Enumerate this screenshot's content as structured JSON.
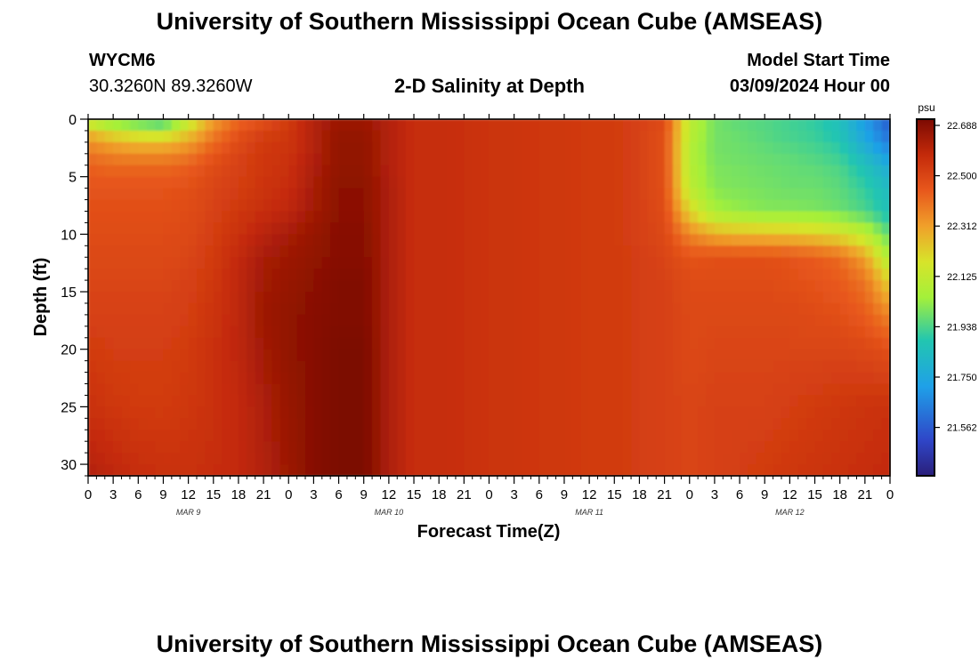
{
  "header": {
    "title": "University of Southern Mississippi Ocean Cube (AMSEAS)",
    "station": "WYCM6",
    "coords": "30.3260N  89.3260W",
    "chart_title": "2-D Salinity at Depth",
    "model_label": "Model Start Time",
    "model_time": "03/09/2024 Hour 00"
  },
  "footer": {
    "title": "University of Southern Mississippi Ocean Cube (AMSEAS)"
  },
  "colors": {
    "low": "#2a1f7a",
    "high": "#7c0a02"
  },
  "chart_data": {
    "type": "heatmap",
    "title": "2-D Salinity at Depth",
    "xlabel": "Forecast Time(Z)",
    "ylabel": "Depth (ft)",
    "x_ticks": [
      "0",
      "3",
      "6",
      "9",
      "12",
      "15",
      "18",
      "21",
      "0",
      "3",
      "6",
      "9",
      "12",
      "15",
      "18",
      "21",
      "0",
      "3",
      "6",
      "9",
      "12",
      "15",
      "18",
      "21",
      "0",
      "3",
      "6",
      "9",
      "12",
      "15",
      "18",
      "21",
      "0"
    ],
    "x_range_hours": [
      0,
      96
    ],
    "day_labels": [
      {
        "label": "MAR 9",
        "hour": 12
      },
      {
        "label": "MAR 10",
        "hour": 36
      },
      {
        "label": "MAR 11",
        "hour": 60
      },
      {
        "label": "MAR 12",
        "hour": 84
      }
    ],
    "y_ticks": [
      0,
      5,
      10,
      15,
      20,
      25,
      30
    ],
    "y_range_ft": [
      0,
      31
    ],
    "colorbar": {
      "unit": "psu",
      "ticks": [
        "22.688",
        "22.500",
        "22.312",
        "22.125",
        "21.938",
        "21.750",
        "21.562"
      ],
      "range": [
        21.375,
        22.7
      ]
    },
    "grid_hours": [
      0,
      3,
      6,
      9,
      12,
      15,
      18,
      21,
      24,
      27,
      30,
      33,
      36,
      39,
      42,
      45,
      48,
      51,
      54,
      57,
      60,
      63,
      66,
      69,
      72,
      75,
      78,
      81,
      84,
      87,
      90,
      93,
      96
    ],
    "grid_depths": [
      0,
      1,
      2,
      3,
      4,
      6,
      8,
      10,
      12,
      14,
      17,
      20,
      25,
      31
    ],
    "values": [
      [
        22.05,
        21.95,
        21.9,
        21.85,
        22.1,
        22.3,
        22.4,
        22.45,
        22.52,
        22.6,
        22.64,
        22.64,
        22.6,
        22.56,
        22.56,
        22.55,
        22.54,
        22.54,
        22.53,
        22.53,
        22.52,
        22.52,
        22.5,
        22.48,
        22.1,
        21.98,
        21.95,
        21.94,
        21.92,
        21.9,
        21.85,
        21.7,
        21.55
      ],
      [
        22.25,
        22.15,
        22.1,
        22.08,
        22.2,
        22.35,
        22.45,
        22.5,
        22.53,
        22.6,
        22.65,
        22.65,
        22.6,
        22.56,
        22.56,
        22.55,
        22.54,
        22.54,
        22.53,
        22.53,
        22.52,
        22.52,
        22.5,
        22.46,
        22.1,
        21.98,
        21.96,
        21.94,
        21.92,
        21.9,
        21.85,
        21.72,
        21.58
      ],
      [
        22.33,
        22.28,
        22.25,
        22.25,
        22.3,
        22.4,
        22.47,
        22.52,
        22.54,
        22.6,
        22.66,
        22.66,
        22.6,
        22.56,
        22.56,
        22.55,
        22.54,
        22.54,
        22.53,
        22.53,
        22.52,
        22.52,
        22.5,
        22.46,
        22.08,
        21.98,
        21.97,
        21.95,
        21.93,
        21.92,
        21.88,
        21.75,
        21.62
      ],
      [
        22.38,
        22.35,
        22.33,
        22.33,
        22.36,
        22.44,
        22.49,
        22.53,
        22.54,
        22.6,
        22.66,
        22.66,
        22.6,
        22.56,
        22.56,
        22.55,
        22.54,
        22.54,
        22.53,
        22.53,
        22.52,
        22.52,
        22.5,
        22.46,
        22.08,
        21.98,
        21.97,
        21.96,
        21.95,
        21.93,
        21.9,
        21.8,
        21.68
      ],
      [
        22.42,
        22.4,
        22.4,
        22.4,
        22.42,
        22.47,
        22.5,
        22.53,
        22.55,
        22.61,
        22.66,
        22.66,
        22.6,
        22.56,
        22.56,
        22.55,
        22.54,
        22.54,
        22.53,
        22.53,
        22.52,
        22.52,
        22.5,
        22.46,
        22.08,
        21.99,
        21.98,
        21.97,
        21.96,
        21.95,
        21.93,
        21.85,
        21.75
      ],
      [
        22.45,
        22.45,
        22.45,
        22.45,
        22.46,
        22.49,
        22.51,
        22.54,
        22.56,
        22.62,
        22.67,
        22.67,
        22.61,
        22.56,
        22.56,
        22.55,
        22.54,
        22.54,
        22.53,
        22.53,
        22.52,
        22.52,
        22.5,
        22.46,
        22.1,
        22.0,
        21.99,
        21.98,
        21.97,
        21.97,
        21.95,
        21.9,
        21.82
      ],
      [
        22.46,
        22.46,
        22.46,
        22.46,
        22.47,
        22.5,
        22.53,
        22.56,
        22.58,
        22.63,
        22.67,
        22.67,
        22.61,
        22.56,
        22.56,
        22.55,
        22.54,
        22.54,
        22.53,
        22.53,
        22.52,
        22.52,
        22.5,
        22.47,
        22.2,
        22.05,
        22.02,
        22.0,
        22.0,
        21.99,
        21.97,
        21.93,
        21.85
      ],
      [
        22.47,
        22.47,
        22.47,
        22.47,
        22.48,
        22.51,
        22.55,
        22.59,
        22.62,
        22.65,
        22.68,
        22.68,
        22.61,
        22.56,
        22.56,
        22.55,
        22.54,
        22.54,
        22.53,
        22.53,
        22.52,
        22.52,
        22.5,
        22.48,
        22.35,
        22.28,
        22.26,
        22.25,
        22.24,
        22.22,
        22.18,
        22.1,
        21.95
      ],
      [
        22.48,
        22.48,
        22.48,
        22.48,
        22.49,
        22.52,
        22.57,
        22.62,
        22.64,
        22.66,
        22.68,
        22.68,
        22.61,
        22.56,
        22.56,
        22.55,
        22.54,
        22.54,
        22.53,
        22.53,
        22.52,
        22.52,
        22.51,
        22.49,
        22.45,
        22.46,
        22.46,
        22.46,
        22.45,
        22.43,
        22.4,
        22.3,
        22.05
      ],
      [
        22.49,
        22.49,
        22.49,
        22.49,
        22.5,
        22.53,
        22.58,
        22.63,
        22.65,
        22.67,
        22.69,
        22.69,
        22.61,
        22.56,
        22.56,
        22.55,
        22.54,
        22.54,
        22.53,
        22.53,
        22.52,
        22.52,
        22.51,
        22.5,
        22.47,
        22.47,
        22.47,
        22.47,
        22.46,
        22.45,
        22.43,
        22.38,
        22.2
      ],
      [
        22.5,
        22.5,
        22.5,
        22.5,
        22.51,
        22.54,
        22.58,
        22.64,
        22.66,
        22.68,
        22.69,
        22.69,
        22.61,
        22.56,
        22.56,
        22.55,
        22.54,
        22.54,
        22.53,
        22.53,
        22.52,
        22.52,
        22.51,
        22.5,
        22.48,
        22.48,
        22.48,
        22.48,
        22.48,
        22.47,
        22.46,
        22.43,
        22.35
      ],
      [
        22.52,
        22.51,
        22.51,
        22.51,
        22.52,
        22.55,
        22.58,
        22.63,
        22.66,
        22.68,
        22.7,
        22.7,
        22.61,
        22.56,
        22.56,
        22.55,
        22.54,
        22.54,
        22.53,
        22.53,
        22.52,
        22.52,
        22.51,
        22.5,
        22.48,
        22.49,
        22.49,
        22.49,
        22.49,
        22.49,
        22.49,
        22.48,
        22.46
      ],
      [
        22.55,
        22.53,
        22.52,
        22.52,
        22.53,
        22.55,
        22.57,
        22.61,
        22.65,
        22.68,
        22.7,
        22.7,
        22.61,
        22.56,
        22.56,
        22.55,
        22.54,
        22.54,
        22.53,
        22.53,
        22.52,
        22.52,
        22.51,
        22.5,
        22.49,
        22.5,
        22.5,
        22.5,
        22.51,
        22.52,
        22.53,
        22.54,
        22.55
      ],
      [
        22.6,
        22.58,
        22.56,
        22.55,
        22.55,
        22.56,
        22.57,
        22.6,
        22.64,
        22.68,
        22.7,
        22.7,
        22.61,
        22.56,
        22.56,
        22.55,
        22.54,
        22.54,
        22.53,
        22.53,
        22.52,
        22.52,
        22.51,
        22.5,
        22.49,
        22.5,
        22.51,
        22.52,
        22.53,
        22.54,
        22.55,
        22.56,
        22.57
      ]
    ]
  }
}
